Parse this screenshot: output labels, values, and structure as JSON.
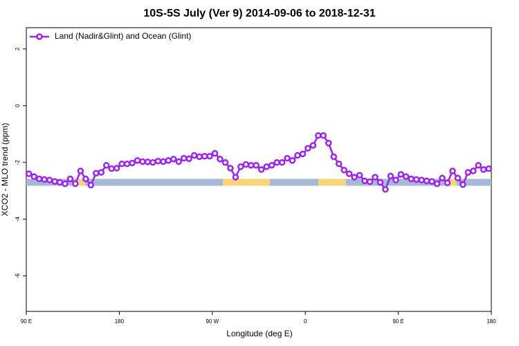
{
  "chart_data": {
    "type": "line",
    "title": "10S-5S July (Ver 9)   2014-09-06 to 2018-12-31",
    "x_label": "Longitude (deg E)",
    "y_label": "XCO2 - MLO trend (ppm)",
    "x": [
      92.5,
      97.5,
      102.5,
      107.5,
      112.5,
      117.5,
      122.5,
      127.5,
      132.5,
      137.5,
      142.5,
      147.5,
      152.5,
      157.5,
      162.5,
      167.5,
      172.5,
      177.5,
      182.5,
      187.5,
      192.5,
      197.5,
      202.5,
      207.5,
      212.5,
      217.5,
      222.5,
      227.5,
      232.5,
      237.5,
      242.5,
      247.5,
      252.5,
      257.5,
      262.5,
      267.5,
      272.5,
      277.5,
      282.5,
      287.5,
      292.5,
      297.5,
      302.5,
      307.5,
      312.5,
      317.5,
      322.5,
      327.5,
      332.5,
      337.5,
      342.5,
      347.5,
      352.5,
      357.5,
      362.5,
      367.5,
      372.5,
      377.5,
      382.5,
      387.5,
      392.5,
      397.5,
      402.5,
      407.5,
      412.5,
      417.5,
      422.5,
      427.5,
      432.5,
      437.5,
      442.5,
      447.5,
      452.5,
      457.5,
      462.5,
      467.5,
      472.5,
      477.5,
      482.5,
      487.5,
      492.5,
      497.5,
      502.5,
      507.5,
      512.5,
      517.5,
      522.5,
      527.5,
      532.5,
      537.5
    ],
    "series": [
      {
        "name": "Land (Nadir&Glint) and Ocean (Glint)",
        "color": "#a020f0",
        "values": [
          -2.4,
          -2.5,
          -2.58,
          -2.6,
          -2.62,
          -2.67,
          -2.7,
          -2.75,
          -2.58,
          -2.75,
          -2.3,
          -2.58,
          -2.8,
          -2.38,
          -2.35,
          -2.1,
          -2.22,
          -2.2,
          -2.05,
          -2.05,
          -2.02,
          -1.93,
          -1.97,
          -1.98,
          -2.0,
          -1.95,
          -1.97,
          -1.93,
          -1.88,
          -1.97,
          -1.85,
          -1.87,
          -1.75,
          -1.8,
          -1.78,
          -1.78,
          -1.68,
          -1.88,
          -2.0,
          -2.2,
          -2.52,
          -2.15,
          -2.07,
          -2.1,
          -2.1,
          -2.25,
          -2.15,
          -2.1,
          -2.0,
          -2.0,
          -1.85,
          -1.93,
          -1.75,
          -1.7,
          -1.5,
          -1.4,
          -1.05,
          -1.05,
          -1.32,
          -1.8,
          -2.05,
          -2.27,
          -2.4,
          -2.52,
          -2.45,
          -2.65,
          -2.68,
          -2.52,
          -2.7,
          -2.95,
          -2.48,
          -2.62,
          -2.42,
          -2.5,
          -2.58,
          -2.6,
          -2.62,
          -2.65,
          -2.67,
          -2.75,
          -2.55,
          -2.72,
          -2.3,
          -2.55,
          -2.78,
          -2.35,
          -2.3,
          -2.1,
          -2.25,
          -2.22
        ]
      }
    ],
    "surface_strip": {
      "y": -2.7,
      "segments": [
        {
          "x": [
            90,
            139.6
          ],
          "color": "#a5b9d6"
        },
        {
          "x": [
            139.6,
            146.9
          ],
          "color": "#f8d57a"
        },
        {
          "x": [
            146.9,
            280.2
          ],
          "color": "#a5b9d6"
        },
        {
          "x": [
            280.2,
            325.7
          ],
          "color": "#f8d57a"
        },
        {
          "x": [
            325.7,
            372.6
          ],
          "color": "#a5b9d6"
        },
        {
          "x": [
            372.6,
            399.4
          ],
          "color": "#f8d57a"
        },
        {
          "x": [
            399.4,
            496.5
          ],
          "color": "#a5b9d6"
        },
        {
          "x": [
            496.5,
            506.5
          ],
          "color": "#f8d57a"
        },
        {
          "x": [
            506.5,
            540
          ],
          "color": "#a5b9d6"
        }
      ]
    },
    "xlim": [
      90,
      540
    ],
    "ylim": [
      -7.25,
      2.75
    ],
    "xticks": [
      {
        "value": 90,
        "label": "90 E"
      },
      180,
      {
        "value": 270,
        "label": "90 W"
      },
      {
        "value": 360,
        "label": "0"
      },
      {
        "value": 450,
        "label": "90 E"
      },
      {
        "value": 540,
        "label": "180"
      }
    ],
    "yticks": [
      2,
      0,
      -2,
      -4,
      -6
    ],
    "legend": "top-left"
  }
}
